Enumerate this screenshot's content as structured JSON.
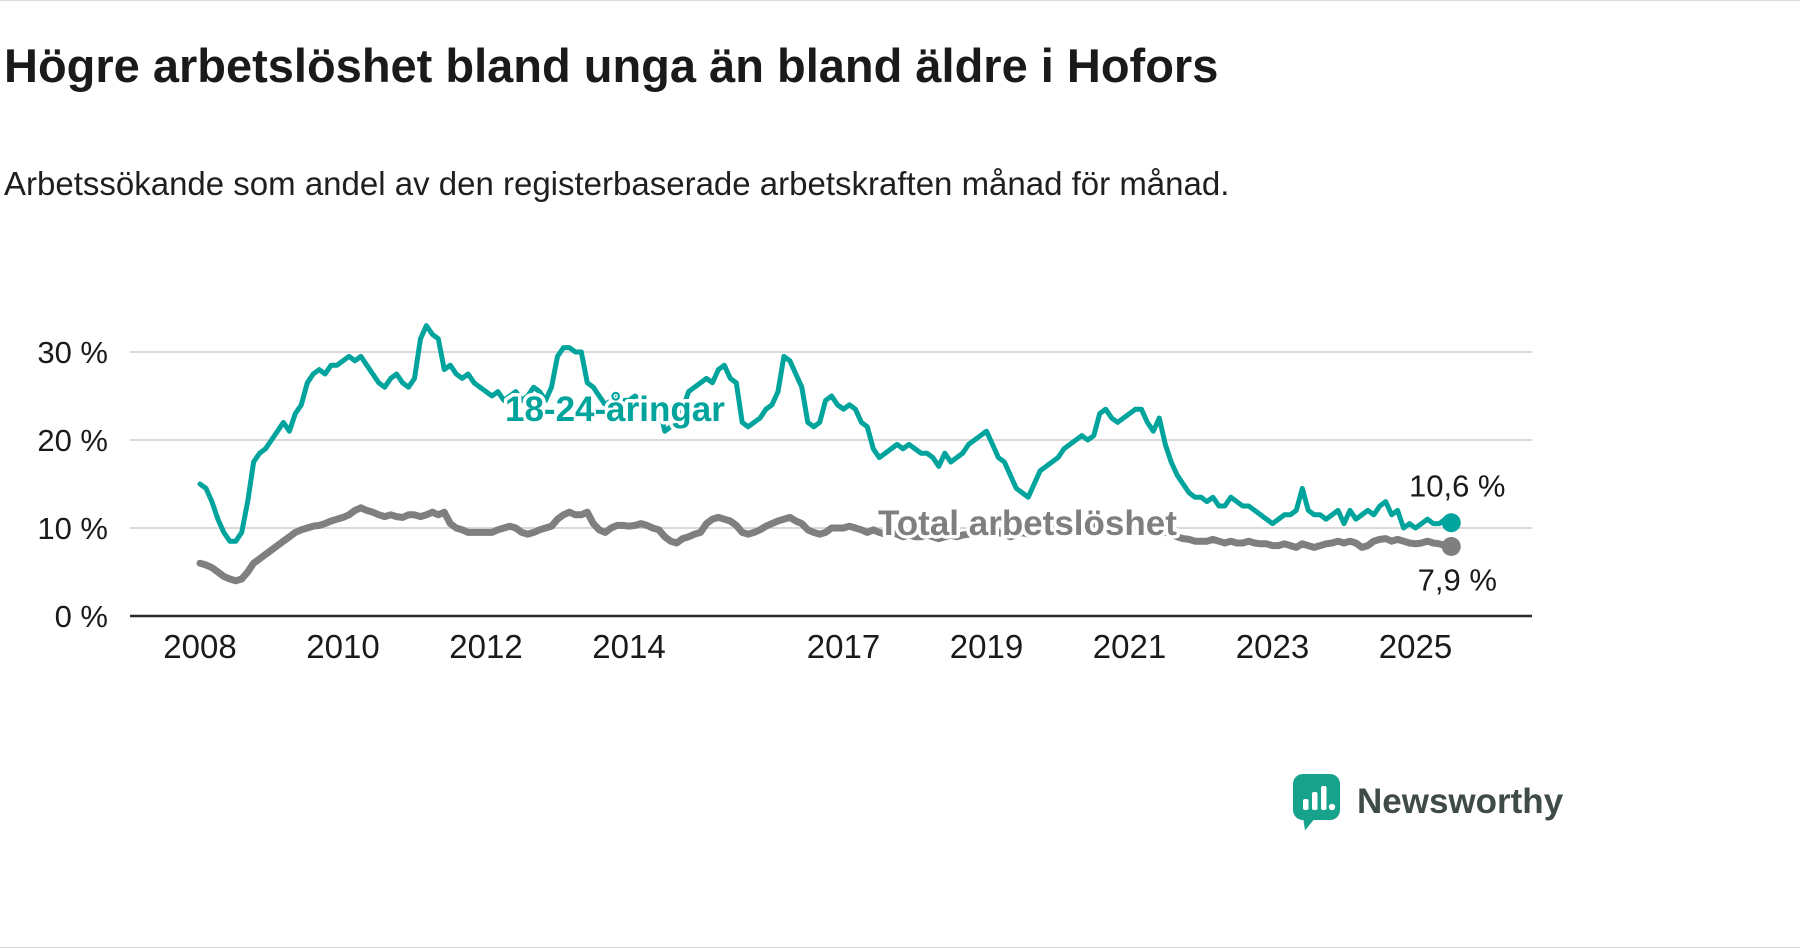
{
  "header": {
    "title": "Högre arbetslöshet bland unga än bland äldre i Hofors",
    "subtitle": "Arbetssökande som andel av den registerbaserade arbetskraften månad för månad."
  },
  "branding": {
    "logo_text": "Newsworthy",
    "logo_color": "#16a28b",
    "logo_text_color": "#3f4b47"
  },
  "chart_data": {
    "type": "line",
    "title": "Högre arbetslöshet bland unga än bland äldre i Hofors",
    "subtitle": "Arbetssökande som andel av den registerbaserade arbetskraften månad för månad.",
    "grid": "horizontal",
    "legend_position": "inline-annotations",
    "x_axis": {
      "start_year": 2008,
      "points_per_year": 12,
      "tick_labels": [
        "2008",
        "2010",
        "2012",
        "2014",
        "2017",
        "2019",
        "2021",
        "2023",
        "2025"
      ]
    },
    "y_axis": {
      "unit": "%",
      "range": [
        0,
        35
      ],
      "ticks": [
        {
          "value": 0,
          "label": "0 %"
        },
        {
          "value": 10,
          "label": "10 %"
        },
        {
          "value": 20,
          "label": "20 %"
        },
        {
          "value": 30,
          "label": "30 %"
        }
      ]
    },
    "series": [
      {
        "id": "young",
        "name": "18-24-åringar",
        "color": "#00a49c",
        "end_value": 10.6,
        "end_label": "10,6 %",
        "values": [
          15,
          14.5,
          13,
          11,
          9.5,
          8.5,
          8.5,
          9.5,
          13,
          17.5,
          18.5,
          19,
          20,
          21,
          22,
          21,
          23,
          24,
          26.5,
          27.5,
          28,
          27.5,
          28.5,
          28.5,
          29,
          29.5,
          29,
          29.5,
          28.5,
          27.5,
          26.5,
          26,
          27,
          27.5,
          26.5,
          26,
          27,
          31.5,
          33,
          32,
          31.5,
          28,
          28.5,
          27.5,
          27,
          27.5,
          26.5,
          26,
          25.5,
          25,
          25.5,
          24.5,
          25,
          25.5,
          24.5,
          25,
          26,
          25.5,
          24.5,
          26,
          29.5,
          30.5,
          30.5,
          30,
          30,
          26.5,
          26,
          25,
          24,
          24.5,
          25,
          24.5,
          24.5,
          25,
          24.5,
          24,
          23.5,
          24,
          21,
          21.5,
          22,
          23.5,
          25.5,
          26,
          26.5,
          27,
          26.5,
          28,
          28.5,
          27,
          26.5,
          22,
          21.5,
          22,
          22.5,
          23.5,
          24,
          25.5,
          29.5,
          29,
          27.5,
          26,
          22,
          21.5,
          22,
          24.5,
          25,
          24,
          23.5,
          24,
          23.5,
          22,
          21.5,
          19,
          18,
          18.5,
          19,
          19.5,
          19,
          19.5,
          19,
          18.5,
          18.5,
          18,
          17,
          18.5,
          17.5,
          18,
          18.5,
          19.5,
          20,
          20.5,
          21,
          19.5,
          18,
          17.5,
          16,
          14.5,
          14,
          13.5,
          15,
          16.5,
          17,
          17.5,
          18,
          19,
          19.5,
          20,
          20.5,
          20,
          20.5,
          23,
          23.5,
          22.5,
          22,
          22.5,
          23,
          23.5,
          23.5,
          22,
          21,
          22.5,
          19.5,
          17.5,
          16,
          15,
          14,
          13.5,
          13.5,
          13,
          13.5,
          12.5,
          12.5,
          13.5,
          13,
          12.5,
          12.5,
          12,
          11.5,
          11,
          10.5,
          11,
          11.5,
          11.5,
          12,
          14.5,
          12,
          11.5,
          11.5,
          11,
          11.5,
          12,
          10.5,
          12,
          11,
          11.5,
          12,
          11.5,
          12.5,
          13,
          11.5,
          12,
          10,
          10.5,
          10,
          10.5,
          11,
          10.5,
          10.5,
          11,
          10.6
        ]
      },
      {
        "id": "total",
        "name": "Total arbetslöshet",
        "color": "#7f7f7f",
        "end_value": 7.9,
        "end_label": "7,9 %",
        "values": [
          6,
          5.8,
          5.5,
          5,
          4.5,
          4.2,
          4,
          4.2,
          5,
          6,
          6.5,
          7,
          7.5,
          8,
          8.5,
          9,
          9.5,
          9.8,
          10,
          10.2,
          10.3,
          10.5,
          10.8,
          11,
          11.2,
          11.5,
          12,
          12.3,
          12,
          11.8,
          11.5,
          11.3,
          11.5,
          11.3,
          11.2,
          11.5,
          11.5,
          11.3,
          11.5,
          11.8,
          11.5,
          11.8,
          10.5,
          10,
          9.8,
          9.5,
          9.5,
          9.5,
          9.5,
          9.5,
          9.8,
          10,
          10.2,
          10,
          9.5,
          9.3,
          9.5,
          9.8,
          10,
          10.2,
          11,
          11.5,
          11.8,
          11.5,
          11.5,
          11.8,
          10.5,
          9.8,
          9.5,
          10,
          10.3,
          10.3,
          10.2,
          10.3,
          10.5,
          10.3,
          10,
          9.8,
          9,
          8.5,
          8.3,
          8.8,
          9,
          9.3,
          9.5,
          10.5,
          11,
          11.2,
          11,
          10.8,
          10.3,
          9.5,
          9.3,
          9.5,
          9.8,
          10.2,
          10.5,
          10.8,
          11,
          11.2,
          10.8,
          10.5,
          9.8,
          9.5,
          9.3,
          9.5,
          10,
          10,
          10,
          10.2,
          10,
          9.8,
          9.5,
          9.8,
          9.5,
          9.3,
          9.5,
          9.3,
          9,
          9.2,
          9,
          9,
          9.2,
          9,
          8.8,
          9,
          9.2,
          9,
          9.2,
          9.3,
          9.5,
          9.5,
          9.5,
          9.3,
          9.5,
          9.3,
          9,
          9.2,
          9.5,
          9.3,
          9.5,
          9.8,
          10,
          10,
          10,
          10.2,
          10.3,
          10.5,
          10.5,
          10.8,
          10.5,
          10.3,
          10.5,
          10.3,
          10.2,
          10,
          10,
          10.2,
          10,
          9.8,
          9.5,
          9.8,
          9.5,
          9.3,
          9,
          8.8,
          8.7,
          8.5,
          8.5,
          8.5,
          8.7,
          8.5,
          8.3,
          8.5,
          8.3,
          8.3,
          8.5,
          8.3,
          8.2,
          8.2,
          8,
          8,
          8.2,
          8,
          7.8,
          8.2,
          8,
          7.8,
          8,
          8.2,
          8.3,
          8.5,
          8.3,
          8.5,
          8.3,
          7.8,
          8,
          8.5,
          8.7,
          8.8,
          8.5,
          8.7,
          8.5,
          8.3,
          8.2,
          8.3,
          8.5,
          8.3,
          8.2,
          8,
          7.9
        ]
      }
    ]
  }
}
